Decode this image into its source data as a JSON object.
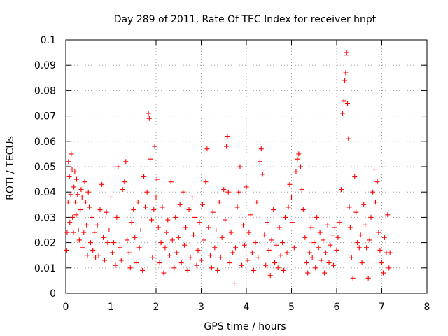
{
  "chart_data": {
    "type": "scatter",
    "title": "Day 289 of 2011, Rate Of TEC Index for receiver hnpt",
    "xlabel": "GPS time / hours",
    "ylabel": "ROTI / TECUs",
    "xlim": [
      0,
      8
    ],
    "ylim": [
      0,
      0.1
    ],
    "xticks": [
      "0",
      "1",
      "2",
      "3",
      "4",
      "5",
      "6",
      "7",
      "8"
    ],
    "yticks": [
      "0",
      "0.01",
      "0.02",
      "0.03",
      "0.04",
      "0.05",
      "0.06",
      "0.07",
      "0.08",
      "0.09",
      "0.1"
    ],
    "grid": true,
    "marker": "+",
    "series_color": "#ff0000",
    "series": [
      {
        "name": "ROTI",
        "points": [
          [
            0.02,
            0.017
          ],
          [
            0.03,
            0.024
          ],
          [
            0.05,
            0.036
          ],
          [
            0.06,
            0.052
          ],
          [
            0.08,
            0.046
          ],
          [
            0.09,
            0.028
          ],
          [
            0.11,
            0.039
          ],
          [
            0.12,
            0.055
          ],
          [
            0.14,
            0.049
          ],
          [
            0.15,
            0.03
          ],
          [
            0.17,
            0.024
          ],
          [
            0.18,
            0.042
          ],
          [
            0.2,
            0.048
          ],
          [
            0.21,
            0.036
          ],
          [
            0.23,
            0.031
          ],
          [
            0.24,
            0.045
          ],
          [
            0.26,
            0.039
          ],
          [
            0.28,
            0.025
          ],
          [
            0.3,
            0.021
          ],
          [
            0.32,
            0.033
          ],
          [
            0.34,
            0.041
          ],
          [
            0.36,
            0.038
          ],
          [
            0.38,
            0.018
          ],
          [
            0.4,
            0.024
          ],
          [
            0.42,
            0.044
          ],
          [
            0.44,
            0.036
          ],
          [
            0.46,
            0.027
          ],
          [
            0.48,
            0.015
          ],
          [
            0.5,
            0.04
          ],
          [
            0.52,
            0.034
          ],
          [
            0.55,
            0.02
          ],
          [
            0.58,
            0.03
          ],
          [
            0.6,
            0.017
          ],
          [
            0.63,
            0.024
          ],
          [
            0.66,
            0.014
          ],
          [
            0.7,
            0.027
          ],
          [
            0.73,
            0.015
          ],
          [
            0.76,
            0.033
          ],
          [
            0.8,
            0.043
          ],
          [
            0.83,
            0.022
          ],
          [
            0.86,
            0.013
          ],
          [
            0.9,
            0.032
          ],
          [
            0.93,
            0.02
          ],
          [
            0.96,
            0.025
          ],
          [
            1.0,
            0.038
          ],
          [
            1.03,
            0.016
          ],
          [
            1.06,
            0.02
          ],
          [
            1.1,
            0.011
          ],
          [
            1.13,
            0.03
          ],
          [
            1.16,
            0.05
          ],
          [
            1.2,
            0.018
          ],
          [
            1.23,
            0.013
          ],
          [
            1.26,
            0.041
          ],
          [
            1.3,
            0.044
          ],
          [
            1.33,
            0.052
          ],
          [
            1.36,
            0.021
          ],
          [
            1.4,
            0.016
          ],
          [
            1.43,
            0.01
          ],
          [
            1.46,
            0.028
          ],
          [
            1.5,
            0.033
          ],
          [
            1.53,
            0.022
          ],
          [
            1.56,
            0.012
          ],
          [
            1.6,
            0.036
          ],
          [
            1.63,
            0.018
          ],
          [
            1.66,
            0.025
          ],
          [
            1.7,
            0.009
          ],
          [
            1.73,
            0.046
          ],
          [
            1.76,
            0.034
          ],
          [
            1.8,
            0.04
          ],
          [
            1.83,
            0.071
          ],
          [
            1.85,
            0.069
          ],
          [
            1.87,
            0.053
          ],
          [
            1.9,
            0.029
          ],
          [
            1.92,
            0.014
          ],
          [
            1.95,
            0.033
          ],
          [
            1.97,
            0.058
          ],
          [
            2.0,
            0.038
          ],
          [
            2.02,
            0.045
          ],
          [
            2.05,
            0.026
          ],
          [
            2.08,
            0.012
          ],
          [
            2.11,
            0.02
          ],
          [
            2.14,
            0.034
          ],
          [
            2.17,
            0.008
          ],
          [
            2.2,
            0.018
          ],
          [
            2.23,
            0.024
          ],
          [
            2.26,
            0.029
          ],
          [
            2.3,
            0.015
          ],
          [
            2.33,
            0.044
          ],
          [
            2.36,
            0.021
          ],
          [
            2.4,
            0.01
          ],
          [
            2.43,
            0.03
          ],
          [
            2.46,
            0.016
          ],
          [
            2.5,
            0.022
          ],
          [
            2.53,
            0.035
          ],
          [
            2.56,
            0.012
          ],
          [
            2.6,
            0.04
          ],
          [
            2.63,
            0.019
          ],
          [
            2.66,
            0.026
          ],
          [
            2.7,
            0.009
          ],
          [
            2.73,
            0.033
          ],
          [
            2.76,
            0.014
          ],
          [
            2.8,
            0.038
          ],
          [
            2.83,
            0.023
          ],
          [
            2.86,
            0.03
          ],
          [
            2.9,
            0.011
          ],
          [
            2.93,
            0.017
          ],
          [
            2.96,
            0.028
          ],
          [
            3.0,
            0.013
          ],
          [
            3.03,
            0.035
          ],
          [
            3.06,
            0.021
          ],
          [
            3.1,
            0.044
          ],
          [
            3.13,
            0.057
          ],
          [
            3.16,
            0.026
          ],
          [
            3.2,
            0.015
          ],
          [
            3.23,
            0.01
          ],
          [
            3.26,
            0.032
          ],
          [
            3.3,
            0.018
          ],
          [
            3.33,
            0.025
          ],
          [
            3.36,
            0.009
          ],
          [
            3.4,
            0.036
          ],
          [
            3.43,
            0.014
          ],
          [
            3.46,
            0.022
          ],
          [
            3.5,
            0.041
          ],
          [
            3.53,
            0.029
          ],
          [
            3.56,
            0.058
          ],
          [
            3.58,
            0.062
          ],
          [
            3.6,
            0.04
          ],
          [
            3.63,
            0.012
          ],
          [
            3.66,
            0.024
          ],
          [
            3.7,
            0.016
          ],
          [
            3.73,
            0.004
          ],
          [
            3.76,
            0.018
          ],
          [
            3.8,
            0.034
          ],
          [
            3.83,
            0.04
          ],
          [
            3.86,
            0.05
          ],
          [
            3.9,
            0.011
          ],
          [
            3.93,
            0.027
          ],
          [
            3.96,
            0.019
          ],
          [
            4.0,
            0.042
          ],
          [
            4.03,
            0.013
          ],
          [
            4.06,
            0.024
          ],
          [
            4.1,
            0.031
          ],
          [
            4.13,
            0.016
          ],
          [
            4.16,
            0.009
          ],
          [
            4.2,
            0.02
          ],
          [
            4.23,
            0.036
          ],
          [
            4.26,
            0.014
          ],
          [
            4.3,
            0.052
          ],
          [
            4.33,
            0.057
          ],
          [
            4.36,
            0.047
          ],
          [
            4.4,
            0.023
          ],
          [
            4.43,
            0.011
          ],
          [
            4.46,
            0.028
          ],
          [
            4.5,
            0.017
          ],
          [
            4.53,
            0.007
          ],
          [
            4.56,
            0.021
          ],
          [
            4.6,
            0.033
          ],
          [
            4.63,
            0.012
          ],
          [
            4.66,
            0.019
          ],
          [
            4.7,
            0.01
          ],
          [
            4.73,
            0.026
          ],
          [
            4.76,
            0.015
          ],
          [
            4.8,
            0.02
          ],
          [
            4.83,
            0.009
          ],
          [
            4.86,
            0.03
          ],
          [
            4.9,
            0.016
          ],
          [
            4.93,
            0.034
          ],
          [
            4.96,
            0.043
          ],
          [
            5.0,
            0.038
          ],
          [
            5.03,
            0.028
          ],
          [
            5.06,
            0.018
          ],
          [
            5.1,
            0.048
          ],
          [
            5.13,
            0.053
          ],
          [
            5.16,
            0.055
          ],
          [
            5.2,
            0.05
          ],
          [
            5.23,
            0.041
          ],
          [
            5.26,
            0.033
          ],
          [
            5.3,
            0.022
          ],
          [
            5.33,
            0.012
          ],
          [
            5.36,
            0.008
          ],
          [
            5.4,
            0.016
          ],
          [
            5.43,
            0.026
          ],
          [
            5.46,
            0.014
          ],
          [
            5.5,
            0.02
          ],
          [
            5.53,
            0.01
          ],
          [
            5.56,
            0.03
          ],
          [
            5.6,
            0.018
          ],
          [
            5.63,
            0.024
          ],
          [
            5.66,
            0.013
          ],
          [
            5.7,
            0.021
          ],
          [
            5.73,
            0.008
          ],
          [
            5.76,
            0.016
          ],
          [
            5.8,
            0.027
          ],
          [
            5.83,
            0.012
          ],
          [
            5.86,
            0.019
          ],
          [
            5.9,
            0.023
          ],
          [
            5.93,
            0.011
          ],
          [
            5.96,
            0.026
          ],
          [
            6.0,
            0.017
          ],
          [
            6.03,
            0.022
          ],
          [
            6.06,
            0.028
          ],
          [
            6.1,
            0.041
          ],
          [
            6.13,
            0.071
          ],
          [
            6.16,
            0.076
          ],
          [
            6.18,
            0.084
          ],
          [
            6.2,
            0.087
          ],
          [
            6.21,
            0.094
          ],
          [
            6.22,
            0.095
          ],
          [
            6.24,
            0.075
          ],
          [
            6.26,
            0.061
          ],
          [
            6.28,
            0.034
          ],
          [
            6.3,
            0.026
          ],
          [
            6.33,
            0.014
          ],
          [
            6.36,
            0.006
          ],
          [
            6.4,
            0.046
          ],
          [
            6.43,
            0.032
          ],
          [
            6.46,
            0.02
          ],
          [
            6.5,
            0.018
          ],
          [
            6.53,
            0.023
          ],
          [
            6.56,
            0.012
          ],
          [
            6.6,
            0.035
          ],
          [
            6.63,
            0.027
          ],
          [
            6.66,
            0.018
          ],
          [
            6.7,
            0.006
          ],
          [
            6.73,
            0.021
          ],
          [
            6.76,
            0.03
          ],
          [
            6.8,
            0.04
          ],
          [
            6.83,
            0.049
          ],
          [
            6.86,
            0.036
          ],
          [
            6.9,
            0.044
          ],
          [
            6.93,
            0.024
          ],
          [
            6.96,
            0.017
          ],
          [
            7.0,
            0.012
          ],
          [
            7.03,
            0.008
          ],
          [
            7.06,
            0.022
          ],
          [
            7.1,
            0.016
          ],
          [
            7.13,
            0.031
          ],
          [
            7.16,
            0.01
          ],
          [
            7.18,
            0.016
          ]
        ]
      }
    ]
  }
}
